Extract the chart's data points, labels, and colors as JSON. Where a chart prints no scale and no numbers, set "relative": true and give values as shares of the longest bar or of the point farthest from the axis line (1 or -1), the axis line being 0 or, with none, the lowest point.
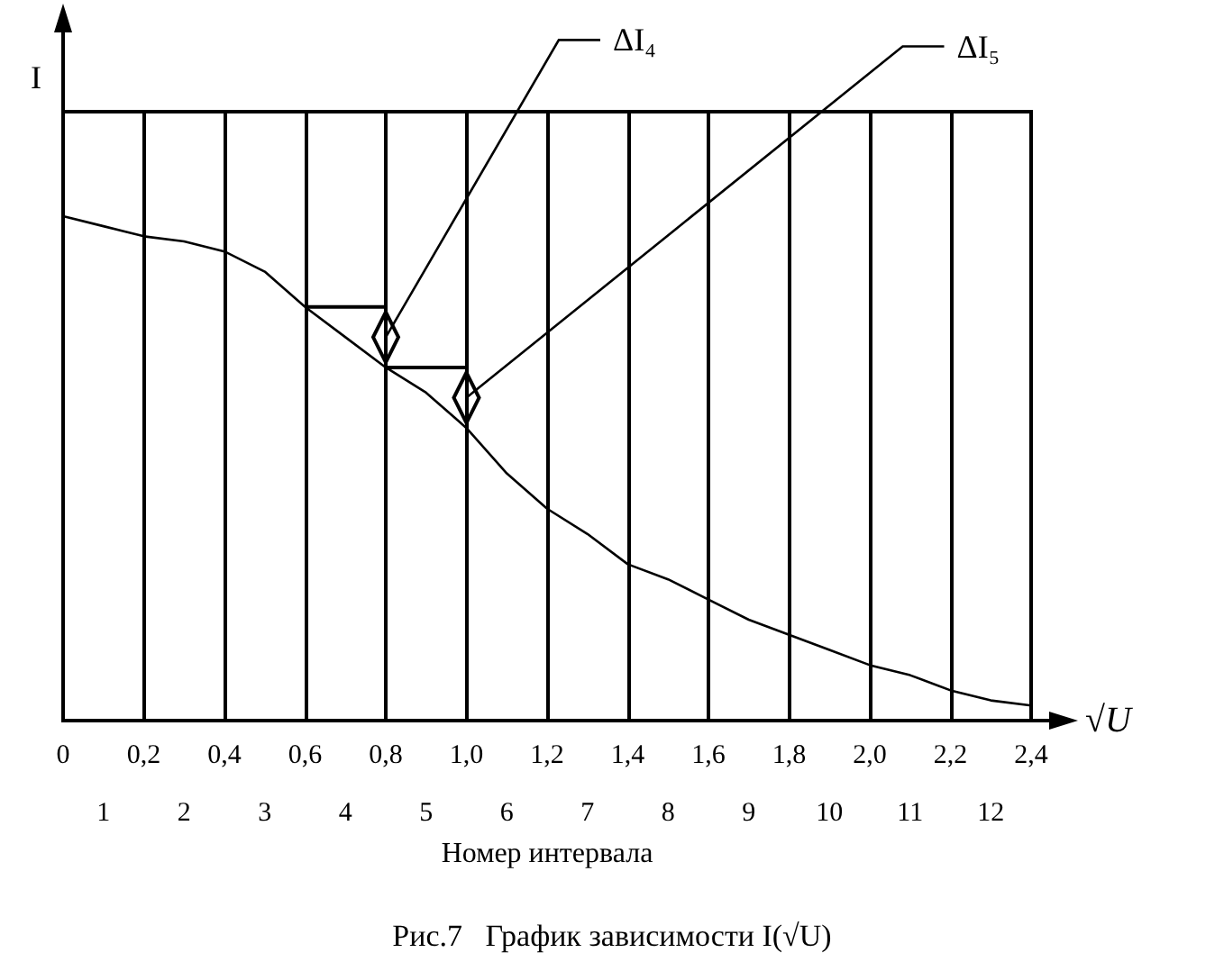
{
  "chart_data": {
    "type": "line",
    "title": "Рис.7   График зависимости I(√U)",
    "xlabel": "√U",
    "ylabel": "I",
    "x2label": "Номер интервала",
    "relative": true,
    "grid": "x",
    "marker": "none",
    "line_style": "solid",
    "x": [
      0,
      0.1,
      0.2,
      0.3,
      0.4,
      0.5,
      0.6,
      0.7,
      0.8,
      0.9,
      1.0,
      1.1,
      1.2,
      1.3,
      1.4,
      1.5,
      1.6,
      1.7,
      1.8,
      1.9,
      2.0,
      2.1,
      2.2,
      2.3,
      2.4
    ],
    "series": [
      {
        "color": "#000000",
        "values": [
          1.0,
          0.98,
          0.96,
          0.95,
          0.93,
          0.89,
          0.82,
          0.76,
          0.7,
          0.65,
          0.58,
          0.49,
          0.42,
          0.37,
          0.31,
          0.28,
          0.24,
          0.2,
          0.17,
          0.14,
          0.11,
          0.09,
          0.06,
          0.04,
          0.03
        ]
      }
    ],
    "xlim": [
      0,
      2.4
    ],
    "xticks": [
      0,
      {
        "value": 0.2,
        "label": "0,2"
      },
      {
        "value": 0.4,
        "label": "0,4"
      },
      {
        "value": 0.6,
        "label": "0,6"
      },
      {
        "value": 0.8,
        "label": "0,8"
      },
      {
        "value": 1.0,
        "label": "1,0"
      },
      {
        "value": 1.2,
        "label": "1,2"
      },
      {
        "value": 1.4,
        "label": "1,4"
      },
      {
        "value": 1.6,
        "label": "1,6"
      },
      {
        "value": 1.8,
        "label": "1,8"
      },
      {
        "value": 2.0,
        "label": "2,0"
      },
      {
        "value": 2.2,
        "label": "2,2"
      },
      {
        "value": 2.4,
        "label": "2,4"
      }
    ],
    "x2lim": [
      0.5,
      12.5
    ],
    "x2ticks": [
      1,
      2,
      3,
      4,
      5,
      6,
      7,
      8,
      9,
      10,
      11,
      12
    ],
    "annotations": [
      {
        "text": "ΔI₄",
        "x": 0.8,
        "y": 0.76
      },
      {
        "text": "ΔI₅",
        "x": 1.0,
        "y": 0.64
      }
    ]
  }
}
